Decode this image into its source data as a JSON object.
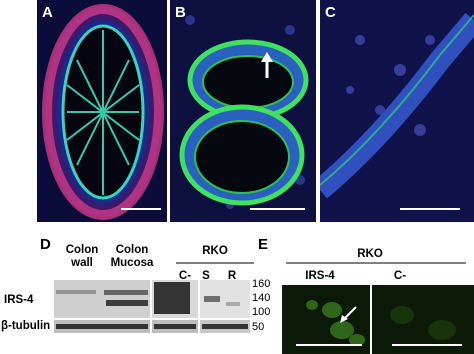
{
  "panel_labels": [
    "A",
    "B",
    "C",
    "D",
    "E"
  ],
  "blot": {
    "columns": [
      "Colon wall",
      "Colon Mucosa"
    ],
    "group": "RKO",
    "lanes": [
      "C-",
      "S",
      "R"
    ],
    "rows": [
      "IRS-4",
      "β-tubulin"
    ],
    "markers": [
      "160",
      "140",
      "100",
      "50"
    ]
  },
  "immunofluorescence": {
    "group": "RKO",
    "columns": [
      "IRS-4",
      "C-"
    ]
  }
}
